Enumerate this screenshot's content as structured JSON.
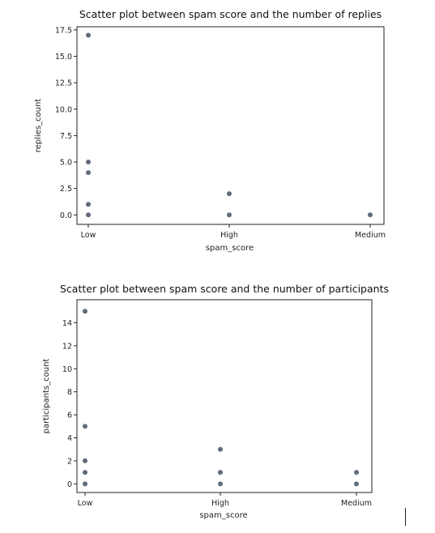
{
  "chart_data": [
    {
      "type": "scatter",
      "title": "Scatter plot between spam score and the number of replies",
      "xlabel": "spam_score",
      "ylabel": "replies_count",
      "categories": [
        "Low",
        "High",
        "Medium"
      ],
      "ylim": [
        -0.9,
        17.8
      ],
      "yticks": [
        0.0,
        2.5,
        5.0,
        7.5,
        10.0,
        12.5,
        15.0,
        17.5
      ],
      "ytick_labels": [
        "0.0",
        "2.5",
        "5.0",
        "7.5",
        "10.0",
        "12.5",
        "15.0",
        "17.5"
      ],
      "points": [
        {
          "x": "Low",
          "y": 17
        },
        {
          "x": "Low",
          "y": 5
        },
        {
          "x": "Low",
          "y": 4
        },
        {
          "x": "Low",
          "y": 1
        },
        {
          "x": "Low",
          "y": 0
        },
        {
          "x": "High",
          "y": 2
        },
        {
          "x": "High",
          "y": 0
        },
        {
          "x": "Medium",
          "y": 0
        }
      ],
      "point_color": "#5f6b7a",
      "grid": false
    },
    {
      "type": "scatter",
      "title": "Scatter plot between spam score and the number of participants",
      "xlabel": "spam_score",
      "ylabel": "participants_count",
      "categories": [
        "Low",
        "High",
        "Medium"
      ],
      "ylim": [
        -0.75,
        16.0
      ],
      "yticks": [
        0,
        2,
        4,
        6,
        8,
        10,
        12,
        14
      ],
      "ytick_labels": [
        "0",
        "2",
        "4",
        "6",
        "8",
        "10",
        "12",
        "14"
      ],
      "points": [
        {
          "x": "Low",
          "y": 15
        },
        {
          "x": "Low",
          "y": 5
        },
        {
          "x": "Low",
          "y": 2
        },
        {
          "x": "Low",
          "y": 1
        },
        {
          "x": "Low",
          "y": 0
        },
        {
          "x": "High",
          "y": 3
        },
        {
          "x": "High",
          "y": 1
        },
        {
          "x": "High",
          "y": 0
        },
        {
          "x": "Medium",
          "y": 1
        },
        {
          "x": "Medium",
          "y": 0
        }
      ],
      "point_color": "#5f6b7a",
      "grid": false
    }
  ]
}
